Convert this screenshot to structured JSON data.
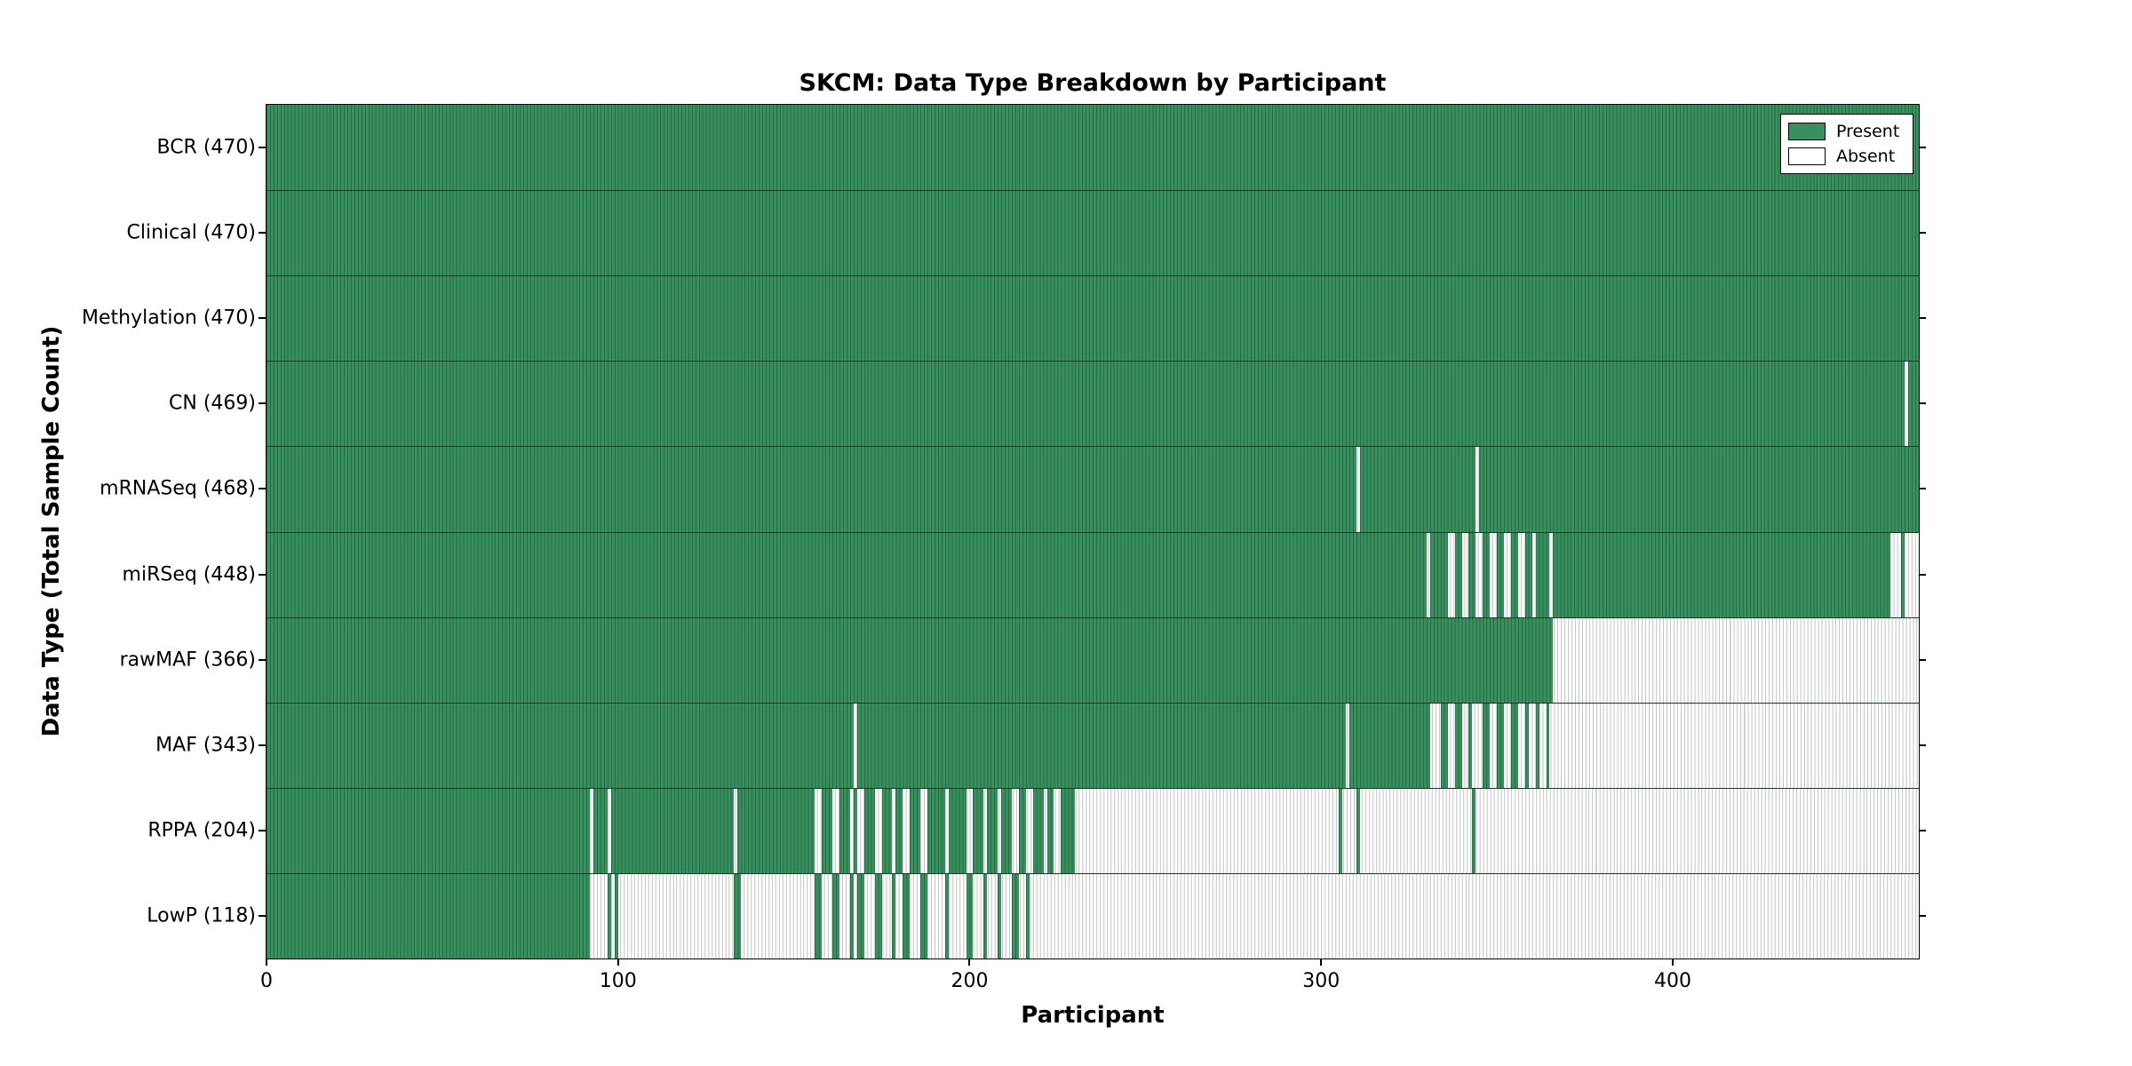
{
  "figure": {
    "background": "#ffffff"
  },
  "chart_data": {
    "type": "heatmap",
    "title": "SKCM: Data Type Breakdown by Participant",
    "xlabel": "Participant",
    "ylabel": "Data Type (Total Sample Count)",
    "x_ticks": [
      0,
      100,
      200,
      300,
      400
    ],
    "x_range": [
      0,
      470
    ],
    "participants_total": 470,
    "grid": false,
    "legend": {
      "position": "upper-right",
      "entries": [
        {
          "label": "Present",
          "color": "#37905e"
        },
        {
          "label": "Absent",
          "color": "#ffffff"
        }
      ]
    },
    "rows": [
      {
        "label": "BCR (470)",
        "data_type": "BCR",
        "present_count": 470,
        "absent_ranges": []
      },
      {
        "label": "Clinical (470)",
        "data_type": "Clinical",
        "present_count": 470,
        "absent_ranges": []
      },
      {
        "label": "Methylation (470)",
        "data_type": "Methylation",
        "present_count": 470,
        "absent_ranges": []
      },
      {
        "label": "CN (469)",
        "data_type": "CN",
        "present_count": 469,
        "absent_ranges": [
          [
            466,
            467
          ]
        ]
      },
      {
        "label": "mRNASeq (468)",
        "data_type": "mRNASeq",
        "present_count": 468,
        "absent_ranges": [
          [
            310,
            311
          ],
          [
            344,
            345
          ]
        ]
      },
      {
        "label": "miRSeq (448)",
        "data_type": "miRSeq",
        "present_count": 448,
        "absent_ranges": [
          [
            330,
            331
          ],
          [
            336,
            338
          ],
          [
            340,
            342
          ],
          [
            344,
            346
          ],
          [
            348,
            350
          ],
          [
            352,
            354
          ],
          [
            356,
            358
          ],
          [
            360,
            361
          ],
          [
            365,
            366
          ],
          [
            462,
            465
          ],
          [
            466,
            470
          ]
        ]
      },
      {
        "label": "rawMAF (366)",
        "data_type": "rawMAF",
        "present_count": 366,
        "absent_ranges": [
          [
            366,
            470
          ]
        ]
      },
      {
        "label": "MAF (343)",
        "data_type": "MAF",
        "present_count": 343,
        "absent_ranges": [
          [
            167,
            168
          ],
          [
            307,
            308
          ],
          [
            331,
            334
          ],
          [
            336,
            338
          ],
          [
            340,
            342
          ],
          [
            343,
            346
          ],
          [
            348,
            350
          ],
          [
            352,
            354
          ],
          [
            356,
            358
          ],
          [
            359,
            361
          ],
          [
            362,
            364
          ],
          [
            365,
            470
          ]
        ]
      },
      {
        "label": "RPPA (204)",
        "data_type": "RPPA",
        "present_count": 204,
        "absent_ranges": [
          [
            92,
            93
          ],
          [
            97,
            98
          ],
          [
            133,
            134
          ],
          [
            156,
            158
          ],
          [
            161,
            163
          ],
          [
            166,
            167
          ],
          [
            168,
            170
          ],
          [
            173,
            175
          ],
          [
            178,
            179
          ],
          [
            181,
            183
          ],
          [
            186,
            188
          ],
          [
            193,
            194
          ],
          [
            199,
            201
          ],
          [
            204,
            205
          ],
          [
            208,
            209
          ],
          [
            212,
            214
          ],
          [
            216,
            218
          ],
          [
            221,
            222
          ],
          [
            224,
            226
          ],
          [
            230,
            305
          ],
          [
            306,
            310
          ],
          [
            311,
            343
          ],
          [
            344,
            470
          ]
        ]
      },
      {
        "label": "LowP (118)",
        "data_type": "LowP",
        "present_count": 118,
        "absent_ranges": [
          [
            92,
            97
          ],
          [
            98,
            99
          ],
          [
            100,
            133
          ],
          [
            135,
            156
          ],
          [
            158,
            161
          ],
          [
            163,
            166
          ],
          [
            167,
            168
          ],
          [
            170,
            173
          ],
          [
            175,
            178
          ],
          [
            179,
            181
          ],
          [
            183,
            186
          ],
          [
            188,
            193
          ],
          [
            194,
            199
          ],
          [
            201,
            204
          ],
          [
            205,
            208
          ],
          [
            209,
            212
          ],
          [
            214,
            216
          ],
          [
            217,
            470
          ]
        ]
      }
    ],
    "colors": {
      "present_fill": "#37905e",
      "present_edge": "#266b46",
      "absent_fill": "#ffffff",
      "absent_edge": "#c3c3c3"
    }
  }
}
